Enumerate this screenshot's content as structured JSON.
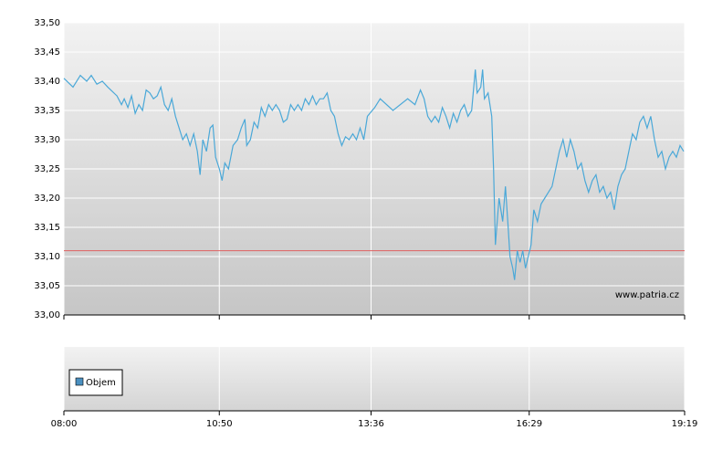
{
  "chart_data": [
    {
      "type": "line",
      "color": "#4aa8d8",
      "x": [
        480,
        490,
        498,
        505,
        510,
        516,
        522,
        528,
        538,
        543,
        546,
        550,
        554,
        558,
        562,
        566,
        570,
        574,
        578,
        582,
        586,
        590,
        594,
        598,
        602,
        606,
        610,
        614,
        618,
        622,
        626,
        629,
        632,
        636,
        640,
        643,
        646,
        650,
        653,
        656,
        660,
        665,
        670,
        674,
        678,
        680,
        684,
        688,
        692,
        696,
        700,
        704,
        708,
        712,
        716,
        720,
        724,
        728,
        732,
        736,
        740,
        744,
        748,
        752,
        756,
        760,
        764,
        768,
        772,
        776,
        780,
        784,
        788,
        792,
        796,
        800,
        804,
        808,
        812,
        820,
        826,
        840,
        856,
        864,
        870,
        874,
        878,
        882,
        886,
        890,
        894,
        898,
        902,
        906,
        910,
        914,
        918,
        922,
        926,
        930,
        932,
        936,
        938,
        940,
        944,
        948,
        950,
        952,
        956,
        960,
        963,
        966,
        968,
        971,
        973,
        976,
        979,
        982,
        985,
        988,
        991,
        994,
        998,
        1002,
        1006,
        1010,
        1014,
        1018,
        1022,
        1026,
        1030,
        1034,
        1038,
        1042,
        1046,
        1050,
        1054,
        1058,
        1062,
        1066,
        1070,
        1074,
        1078,
        1082,
        1086,
        1090,
        1094,
        1098,
        1102,
        1106,
        1110,
        1114,
        1118,
        1122,
        1126,
        1130,
        1134,
        1138,
        1142,
        1146,
        1150,
        1154,
        1158
      ],
      "values": [
        33.405,
        33.39,
        33.41,
        33.4,
        33.41,
        33.395,
        33.4,
        33.39,
        33.375,
        33.36,
        33.37,
        33.355,
        33.375,
        33.345,
        33.36,
        33.35,
        33.385,
        33.38,
        33.37,
        33.375,
        33.39,
        33.36,
        33.35,
        33.37,
        33.34,
        33.32,
        33.3,
        33.31,
        33.29,
        33.31,
        33.28,
        33.24,
        33.3,
        33.28,
        33.32,
        33.325,
        33.27,
        33.25,
        33.23,
        33.26,
        33.25,
        33.29,
        33.3,
        33.32,
        33.335,
        33.29,
        33.3,
        33.33,
        33.32,
        33.355,
        33.34,
        33.36,
        33.35,
        33.36,
        33.35,
        33.33,
        33.335,
        33.36,
        33.35,
        33.36,
        33.35,
        33.37,
        33.36,
        33.375,
        33.36,
        33.37,
        33.37,
        33.38,
        33.35,
        33.34,
        33.31,
        33.29,
        33.305,
        33.3,
        33.31,
        33.3,
        33.32,
        33.3,
        33.34,
        33.355,
        33.37,
        33.35,
        33.37,
        33.36,
        33.385,
        33.37,
        33.34,
        33.33,
        33.34,
        33.33,
        33.355,
        33.34,
        33.32,
        33.345,
        33.33,
        33.35,
        33.36,
        33.34,
        33.35,
        33.42,
        33.38,
        33.39,
        33.42,
        33.37,
        33.38,
        33.34,
        33.25,
        33.12,
        33.2,
        33.16,
        33.22,
        33.15,
        33.1,
        33.08,
        33.06,
        33.11,
        33.09,
        33.11,
        33.08,
        33.1,
        33.12,
        33.18,
        33.16,
        33.19,
        33.2,
        33.21,
        33.22,
        33.25,
        33.28,
        33.3,
        33.27,
        33.3,
        33.28,
        33.25,
        33.26,
        33.23,
        33.21,
        33.23,
        33.24,
        33.21,
        33.22,
        33.2,
        33.21,
        33.18,
        33.22,
        33.24,
        33.25,
        33.28,
        33.31,
        33.3,
        33.33,
        33.34,
        33.32,
        33.34,
        33.3,
        33.27,
        33.28,
        33.25,
        33.27,
        33.28,
        33.27,
        33.29,
        33.28
      ],
      "reference": 33.11,
      "reference_color": "#e06060",
      "xlim": [
        480,
        1159
      ],
      "xticks": [
        {
          "value": 480,
          "label": "08:00"
        },
        {
          "value": 650,
          "label": "10:50"
        },
        {
          "value": 816,
          "label": "13:36"
        },
        {
          "value": 989,
          "label": "16:29"
        },
        {
          "value": 1159,
          "label": "19:19"
        }
      ],
      "ylim": [
        33.0,
        33.5
      ],
      "yticks": [
        {
          "value": 33.0,
          "label": "33,00"
        },
        {
          "value": 33.05,
          "label": "33,05"
        },
        {
          "value": 33.1,
          "label": "33,10"
        },
        {
          "value": 33.15,
          "label": "33,15"
        },
        {
          "value": 33.2,
          "label": "33,20"
        },
        {
          "value": 33.25,
          "label": "33,25"
        },
        {
          "value": 33.3,
          "label": "33,30"
        },
        {
          "value": 33.35,
          "label": "33,35"
        },
        {
          "value": 33.4,
          "label": "33,40"
        },
        {
          "value": 33.45,
          "label": "33,45"
        },
        {
          "value": 33.5,
          "label": "33,50"
        }
      ],
      "grid": true,
      "watermark": "www.patria.cz"
    },
    {
      "type": "bar",
      "series": [
        {
          "name": "Objem",
          "color": "#4a90c0",
          "values": []
        }
      ],
      "legend": "left"
    }
  ]
}
